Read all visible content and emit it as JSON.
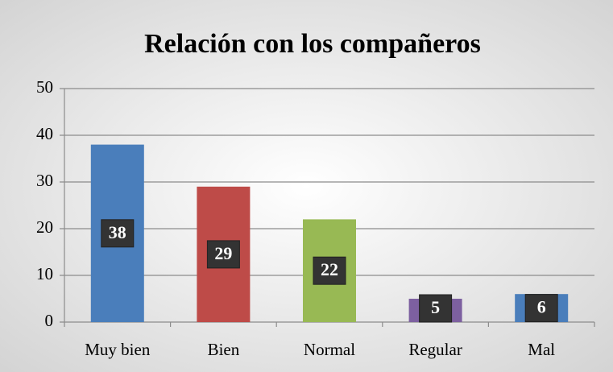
{
  "chart_data": {
    "type": "bar",
    "title": "Relación con los compañeros",
    "categories": [
      "Muy bien",
      "Bien",
      "Normal",
      "Regular",
      "Mal"
    ],
    "values": [
      38,
      29,
      22,
      5,
      6
    ],
    "colors": [
      "#4a7ebb",
      "#be4b48",
      "#98b954",
      "#7d60a0",
      "#4a7ebb"
    ],
    "ylim": [
      0,
      50
    ],
    "yticks": [
      0,
      10,
      20,
      30,
      40,
      50
    ],
    "grid": true
  }
}
